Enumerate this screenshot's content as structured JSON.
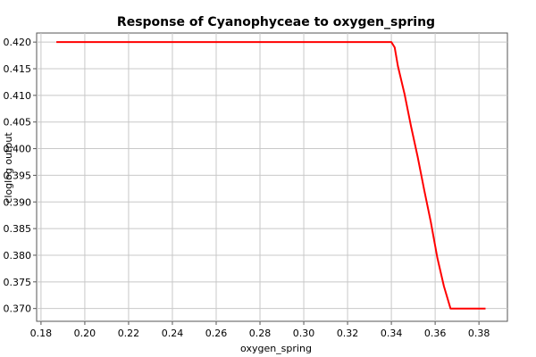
{
  "chart_data": {
    "type": "line",
    "title": "Response of Cyanophyceae to oxygen_spring",
    "xlabel": "oxygen_spring",
    "ylabel": "cloglog output",
    "xlim": [
      0.178,
      0.393
    ],
    "ylim": [
      0.3676,
      0.4217
    ],
    "grid": true,
    "x_ticks": [
      "0.18",
      "0.20",
      "0.22",
      "0.24",
      "0.26",
      "0.28",
      "0.30",
      "0.32",
      "0.34",
      "0.36",
      "0.38"
    ],
    "y_ticks": [
      "0.370",
      "0.375",
      "0.380",
      "0.385",
      "0.390",
      "0.395",
      "0.400",
      "0.405",
      "0.410",
      "0.415",
      "0.420"
    ],
    "series": [
      {
        "color": "#ff0000",
        "x": [
          0.187,
          0.34,
          0.3415,
          0.343,
          0.346,
          0.349,
          0.352,
          0.355,
          0.358,
          0.361,
          0.364,
          0.367,
          0.383
        ],
        "y": [
          0.42,
          0.42,
          0.419,
          0.4155,
          0.4103,
          0.4042,
          0.3985,
          0.3922,
          0.3863,
          0.3795,
          0.3742,
          0.37,
          0.37
        ]
      }
    ]
  }
}
